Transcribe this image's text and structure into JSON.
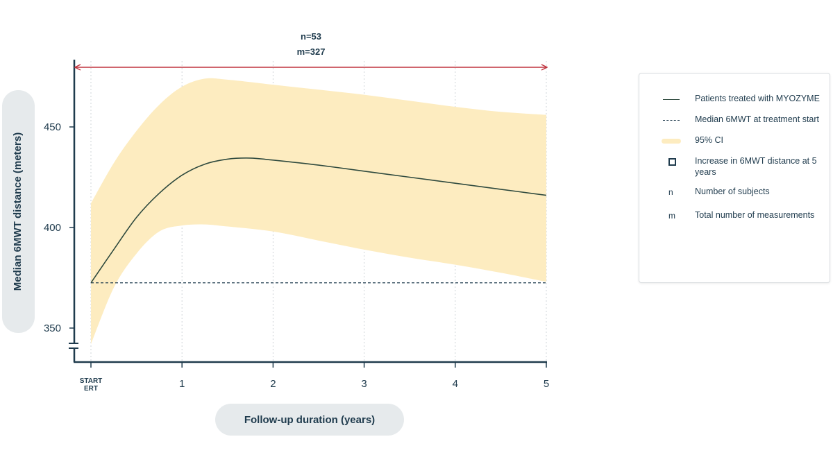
{
  "chart_data": {
    "type": "line",
    "ylabel": "Median 6MWT distance (meters)",
    "xlabel": "Follow-up duration (years)",
    "xlim": [
      0,
      5
    ],
    "ylim": [
      338,
      478
    ],
    "x_ticks": [
      {
        "x": 0,
        "line1": "START",
        "line2": "ERT"
      },
      {
        "x": 1,
        "label": "1"
      },
      {
        "x": 2,
        "label": "2"
      },
      {
        "x": 3,
        "label": "3"
      },
      {
        "x": 4,
        "label": "4"
      },
      {
        "x": 5,
        "label": "5"
      }
    ],
    "y_ticks": [
      350,
      400,
      450
    ],
    "median_line": {
      "x": [
        0,
        0.25,
        0.5,
        0.75,
        1,
        1.25,
        1.5,
        1.75,
        2,
        2.5,
        3,
        3.5,
        4,
        4.5,
        5
      ],
      "y": [
        372.5,
        389,
        405,
        417,
        426,
        431.5,
        434,
        434.5,
        433.5,
        431,
        428,
        425,
        422,
        419,
        416
      ]
    },
    "ci_upper": {
      "x": [
        0,
        0.25,
        0.5,
        0.75,
        1,
        1.25,
        1.5,
        2,
        2.5,
        3,
        3.5,
        4,
        4.5,
        5
      ],
      "y": [
        412,
        432,
        448,
        461,
        470,
        474,
        473.5,
        471,
        468.5,
        466,
        463,
        460,
        457.5,
        456
      ]
    },
    "ci_lower": {
      "x": [
        0,
        0.25,
        0.5,
        0.75,
        1,
        1.25,
        1.5,
        2,
        2.5,
        3,
        3.5,
        4,
        4.5,
        5
      ],
      "y": [
        342,
        370,
        387,
        398,
        401,
        401.5,
        400.5,
        398,
        393.5,
        389,
        385,
        381.5,
        377.5,
        373
      ]
    },
    "baseline": 372.5,
    "annotation": {
      "n": "n=53",
      "m": "m=327"
    },
    "legend": [
      {
        "symbol": "line",
        "label": "Patients treated with MYOZYME"
      },
      {
        "symbol": "dash",
        "label": "Median 6MWT at treatment start"
      },
      {
        "symbol": "band",
        "label": "95% CI"
      },
      {
        "symbol": "square",
        "label": "Increase in 6MWT distance at 5 years"
      },
      {
        "symbol": "letter",
        "letter": "n",
        "label": "Number of subjects"
      },
      {
        "symbol": "letter",
        "letter": "m",
        "label": "Total number of measurements"
      }
    ],
    "colors": {
      "median": "#2f4a3e",
      "ci_fill": "#fdecc0",
      "baseline": "#1f3b4d",
      "range_arrow": "#c0343f",
      "axis": "#1f3b4d",
      "pill": "#e6eaec"
    }
  }
}
